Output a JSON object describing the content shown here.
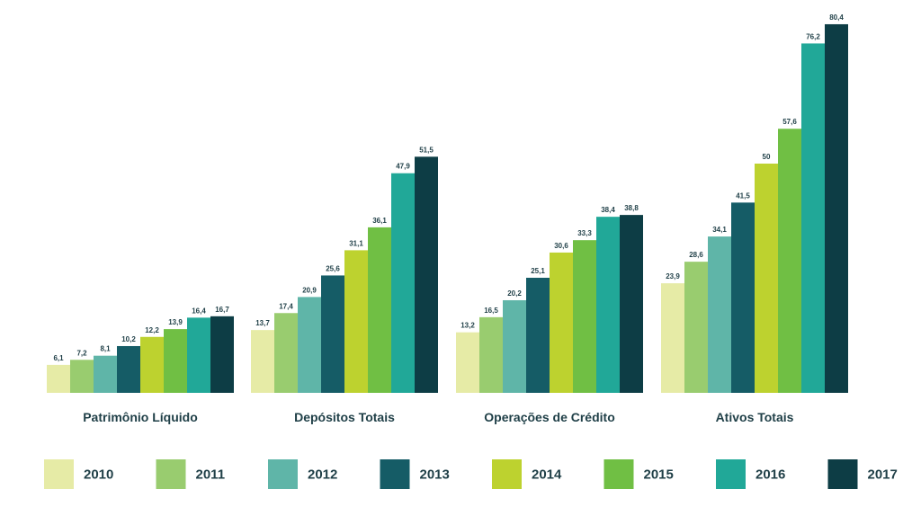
{
  "chart_data": {
    "type": "bar",
    "categories": [
      "Patrimônio Líquido",
      "Depósitos Totais",
      "Operações de Crédito",
      "Ativos Totais"
    ],
    "series": [
      {
        "name": "2010",
        "color": "#e6eba6",
        "values": [
          6.1,
          13.7,
          13.2,
          23.9
        ],
        "labels": [
          "6,1",
          "13,7",
          "13,2",
          "23,9"
        ]
      },
      {
        "name": "2011",
        "color": "#99cc6f",
        "values": [
          7.2,
          17.4,
          16.5,
          28.6
        ],
        "labels": [
          "7,2",
          "17,4",
          "16,5",
          "28,6"
        ]
      },
      {
        "name": "2012",
        "color": "#5fb5a8",
        "values": [
          8.1,
          20.9,
          20.2,
          34.1
        ],
        "labels": [
          "8,1",
          "20,9",
          "20,2",
          "34,1"
        ]
      },
      {
        "name": "2013",
        "color": "#155c66",
        "values": [
          10.2,
          25.6,
          25.1,
          41.5
        ],
        "labels": [
          "10,2",
          "25,6",
          "25,1",
          "41,5"
        ]
      },
      {
        "name": "2014",
        "color": "#bdd22f",
        "values": [
          12.2,
          31.1,
          30.6,
          50
        ],
        "labels": [
          "12,2",
          "31,1",
          "30,6",
          "50"
        ]
      },
      {
        "name": "2015",
        "color": "#70bf44",
        "values": [
          13.9,
          36.1,
          33.3,
          57.6
        ],
        "labels": [
          "13,9",
          "36,1",
          "33,3",
          "57,6"
        ]
      },
      {
        "name": "2016",
        "color": "#21a898",
        "values": [
          16.4,
          47.9,
          38.4,
          76.2
        ],
        "labels": [
          "16,4",
          "47,9",
          "38,4",
          "76,2"
        ]
      },
      {
        "name": "2017",
        "color": "#0d3d45",
        "values": [
          16.7,
          51.5,
          38.8,
          80.4
        ],
        "labels": [
          "16,7",
          "51,5",
          "38,8",
          "80,4"
        ]
      }
    ],
    "legend_position": "bottom",
    "grid": false
  }
}
